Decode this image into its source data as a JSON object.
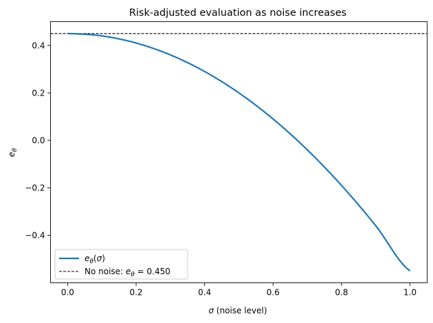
{
  "chart_data": {
    "type": "line",
    "title": "Risk-adjusted evaluation as noise increases",
    "xlabel": "σ (noise level)",
    "ylabel": "eθ",
    "xlim": [
      -0.05,
      1.05
    ],
    "ylim": [
      -0.6,
      0.5
    ],
    "xticks": [
      0.0,
      0.2,
      0.4,
      0.6,
      0.8,
      1.0
    ],
    "xtick_labels": [
      "0.0",
      "0.2",
      "0.4",
      "0.6",
      "0.8",
      "1.0"
    ],
    "yticks": [
      -0.4,
      -0.2,
      0.0,
      0.2,
      0.4
    ],
    "ytick_labels": [
      "−0.4",
      "−0.2",
      "0.0",
      "0.2",
      "0.4"
    ],
    "grid": false,
    "legend_position": "lower-left",
    "series": [
      {
        "name": "eθ(σ)",
        "color": "#1f77b4",
        "style": "solid",
        "x": [
          0.0,
          0.1,
          0.2,
          0.3,
          0.4,
          0.5,
          0.6,
          0.7,
          0.8,
          0.9,
          1.0
        ],
        "y": [
          0.45,
          0.44,
          0.41,
          0.36,
          0.29,
          0.2,
          0.09,
          -0.04,
          -0.19,
          -0.36,
          -0.55
        ]
      }
    ],
    "reference_lines": [
      {
        "name": "No noise: eθ = 0.450",
        "orientation": "horizontal",
        "y": 0.45,
        "color": "#000000",
        "style": "dashed"
      }
    ]
  }
}
